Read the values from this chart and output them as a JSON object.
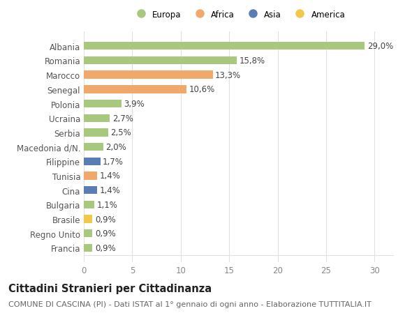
{
  "categories": [
    "Albania",
    "Romania",
    "Marocco",
    "Senegal",
    "Polonia",
    "Ucraina",
    "Serbia",
    "Macedonia d/N.",
    "Filippine",
    "Tunisia",
    "Cina",
    "Bulgaria",
    "Brasile",
    "Regno Unito",
    "Francia"
  ],
  "values": [
    29.0,
    15.8,
    13.3,
    10.6,
    3.9,
    2.7,
    2.5,
    2.0,
    1.7,
    1.4,
    1.4,
    1.1,
    0.9,
    0.9,
    0.9
  ],
  "labels": [
    "29,0%",
    "15,8%",
    "13,3%",
    "10,6%",
    "3,9%",
    "2,7%",
    "2,5%",
    "2,0%",
    "1,7%",
    "1,4%",
    "1,4%",
    "1,1%",
    "0,9%",
    "0,9%",
    "0,9%"
  ],
  "continents": [
    "Europa",
    "Europa",
    "Africa",
    "Africa",
    "Europa",
    "Europa",
    "Europa",
    "Europa",
    "Asia",
    "Africa",
    "Asia",
    "Europa",
    "America",
    "Europa",
    "Europa"
  ],
  "colors": {
    "Europa": "#a8c87e",
    "Africa": "#f0a96a",
    "Asia": "#5b7db5",
    "America": "#f0c84a"
  },
  "xlim": [
    0,
    32
  ],
  "xticks": [
    0,
    5,
    10,
    15,
    20,
    25,
    30
  ],
  "background_color": "#ffffff",
  "grid_color": "#e0e0e0",
  "title": "Cittadini Stranieri per Cittadinanza",
  "subtitle": "COMUNE DI CASCINA (PI) - Dati ISTAT al 1° gennaio di ogni anno - Elaborazione TUTTITALIA.IT",
  "bar_height": 0.55,
  "label_fontsize": 8.5,
  "ytick_fontsize": 8.5,
  "xtick_fontsize": 8.5,
  "title_fontsize": 10.5,
  "subtitle_fontsize": 8.0,
  "legend_order": [
    "Europa",
    "Africa",
    "Asia",
    "America"
  ]
}
